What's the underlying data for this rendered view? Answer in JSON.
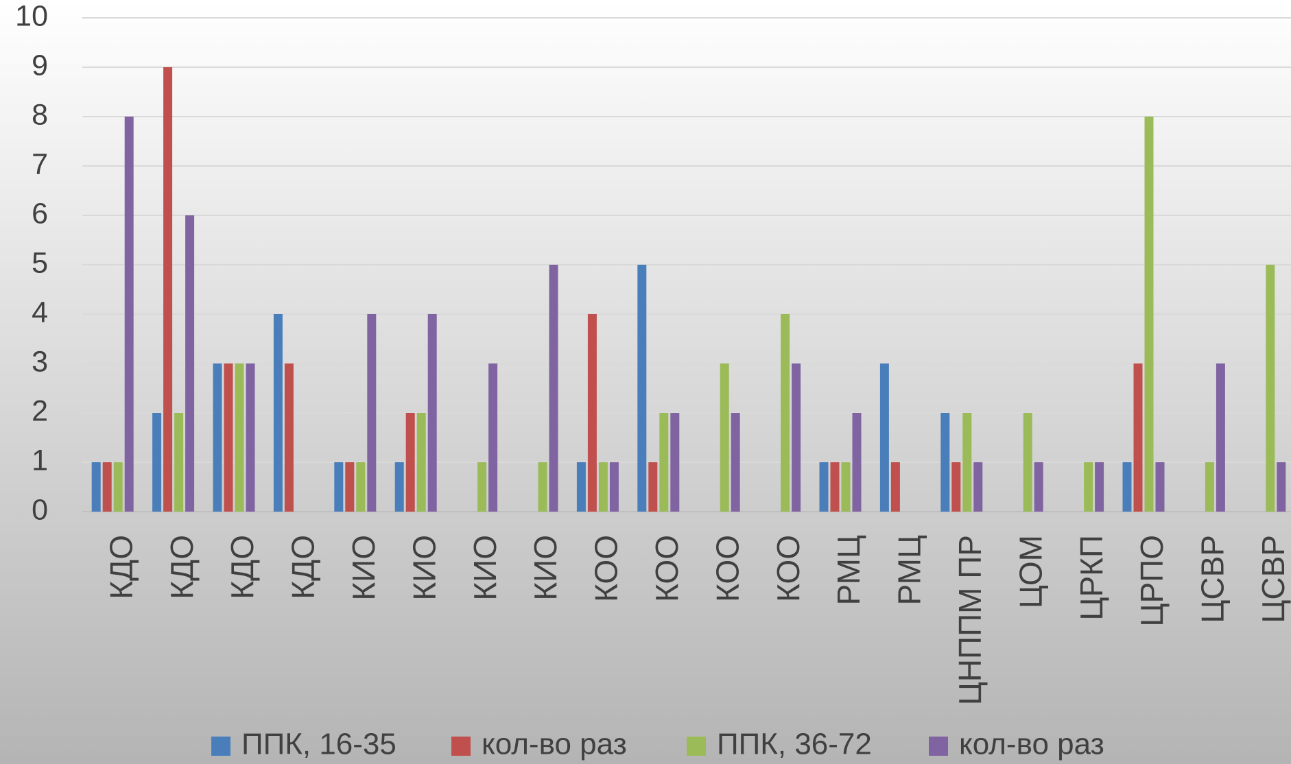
{
  "chart_data": {
    "type": "bar",
    "categories": [
      "КДО",
      "КДО",
      "КДО",
      "КДО",
      "КИО",
      "КИО",
      "КИО",
      "КИО",
      "КОО",
      "КОО",
      "КОО",
      "КОО",
      "РМЦ",
      "РМЦ",
      "ЦНППМ ПР",
      "ЦОМ",
      "ЦРКП",
      "ЦРПО",
      "ЦСВР",
      "ЦСВР"
    ],
    "series": [
      {
        "name": "ППК, 16-35",
        "color": "#4a7ebb",
        "values": [
          1,
          2,
          3,
          4,
          1,
          1,
          0,
          0,
          1,
          5,
          0,
          0,
          1,
          3,
          2,
          0,
          0,
          1,
          0,
          0
        ]
      },
      {
        "name": "кол-во раз",
        "color": "#c0504d",
        "values": [
          1,
          9,
          3,
          3,
          1,
          2,
          0,
          0,
          4,
          1,
          0,
          0,
          1,
          1,
          1,
          0,
          0,
          3,
          0,
          0
        ]
      },
      {
        "name": "ППК, 36-72",
        "color": "#9bbb59",
        "values": [
          1,
          2,
          3,
          0,
          1,
          2,
          1,
          1,
          1,
          2,
          3,
          4,
          1,
          0,
          2,
          2,
          1,
          8,
          1,
          5
        ]
      },
      {
        "name": "кол-во раз",
        "color": "#8064a2",
        "values": [
          8,
          6,
          3,
          0,
          4,
          4,
          3,
          5,
          1,
          2,
          2,
          3,
          2,
          0,
          1,
          1,
          1,
          1,
          3,
          1
        ]
      }
    ],
    "ylim": [
      0,
      10
    ],
    "yticks": [
      0,
      1,
      2,
      3,
      4,
      5,
      6,
      7,
      8,
      9,
      10
    ],
    "grid": true,
    "legend": "bottom"
  }
}
